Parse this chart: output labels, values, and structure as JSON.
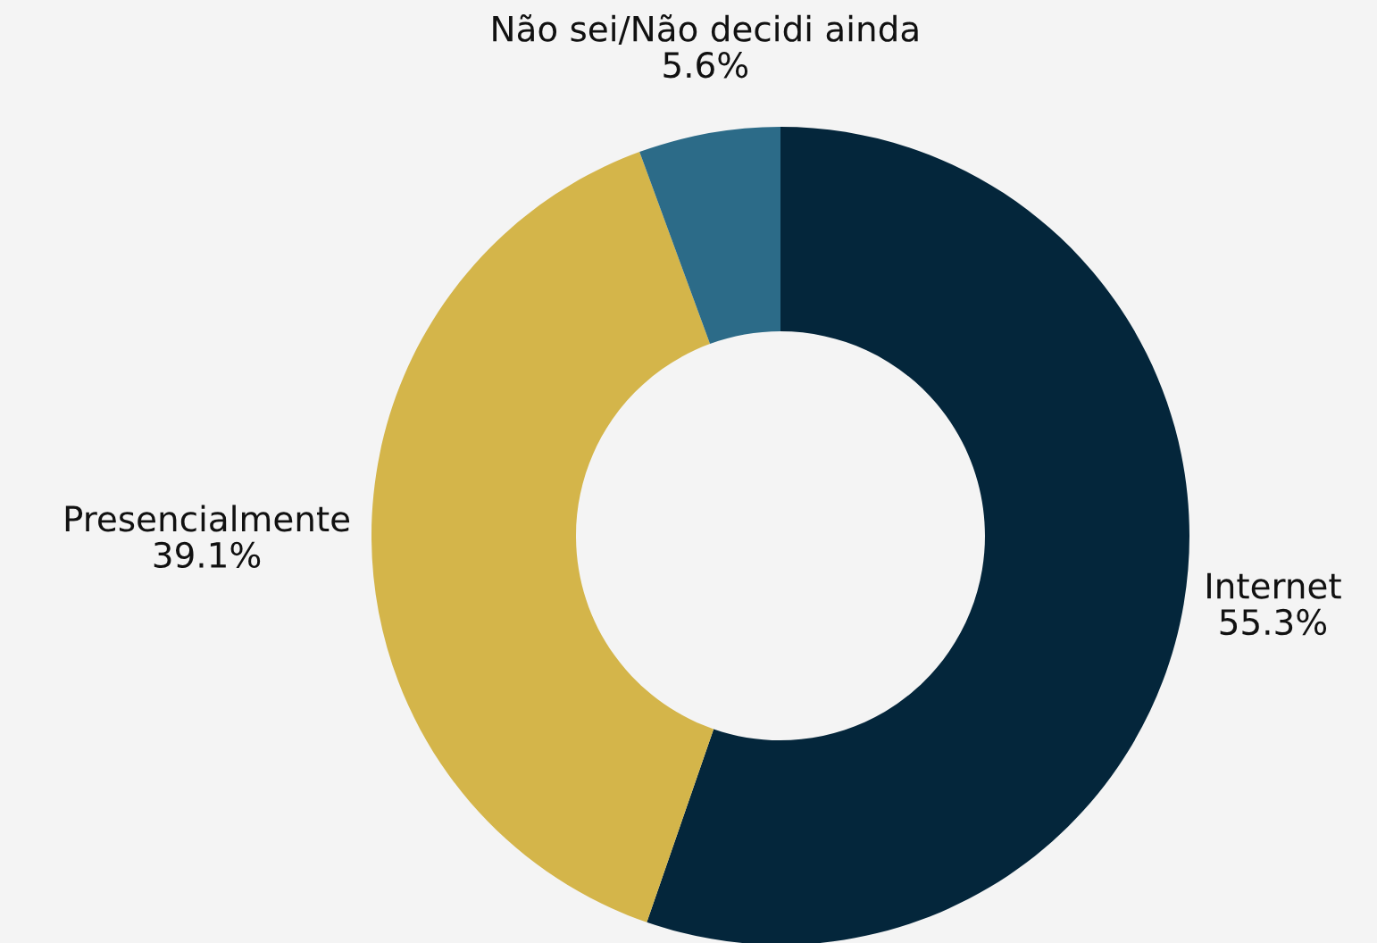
{
  "chart_data": {
    "type": "donut",
    "categories": [
      "Internet",
      "Presencialmente",
      "Não sei/Não decidi ainda"
    ],
    "values": [
      55.3,
      39.1,
      5.6
    ],
    "value_labels": [
      "55.3%",
      "39.1%",
      "5.6%"
    ],
    "colors": [
      "#04263b",
      "#d4b54a",
      "#2c6b88"
    ]
  }
}
